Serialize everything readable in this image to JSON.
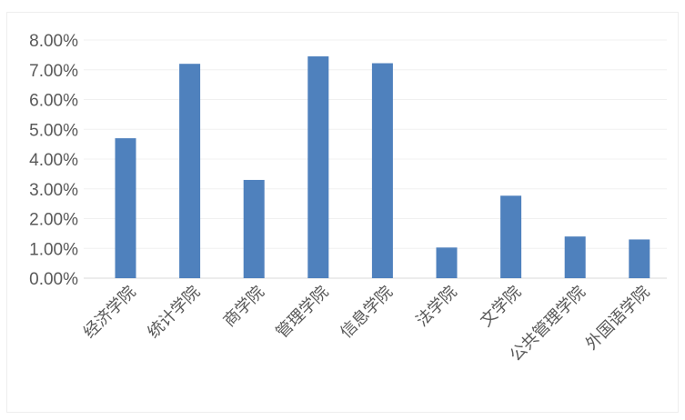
{
  "chart_data": {
    "type": "bar",
    "title": "",
    "xlabel": "",
    "ylabel": "",
    "categories": [
      "经济学院",
      "统计学院",
      "商学院",
      "管理学院",
      "信息学院",
      "法学院",
      "文学院",
      "公共管理学院",
      "外国语学院"
    ],
    "values": [
      4.7,
      7.2,
      3.3,
      7.45,
      7.22,
      1.03,
      2.77,
      1.4,
      1.3
    ],
    "value_format": "percent",
    "ylim": [
      0,
      8
    ],
    "yticks": [
      "0.00%",
      "1.00%",
      "2.00%",
      "3.00%",
      "4.00%",
      "5.00%",
      "6.00%",
      "7.00%",
      "8.00%"
    ],
    "grid": true,
    "legend": "none",
    "bar_color": "#4f81bd",
    "grid_color": "#f0f0f0",
    "text_color": "#595959"
  }
}
